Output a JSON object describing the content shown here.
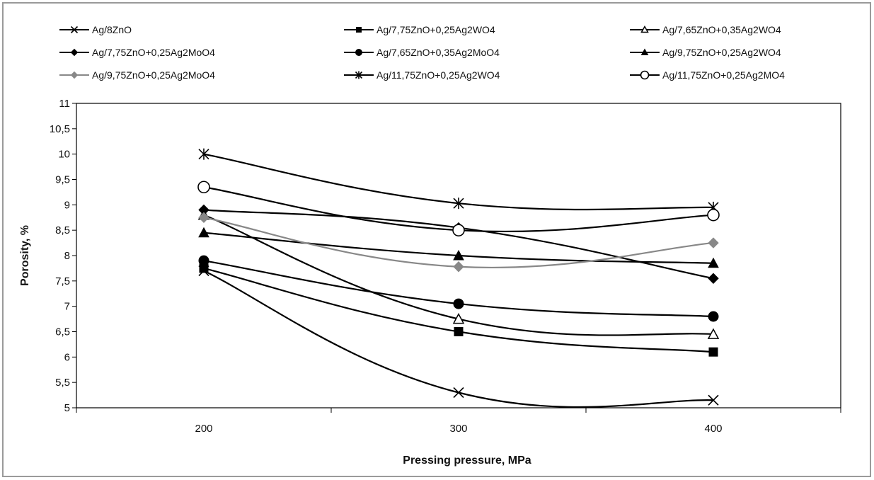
{
  "chart_data": {
    "type": "line",
    "title": "",
    "xlabel": "Pressing pressure,  MPa",
    "ylabel": "Porosity, %",
    "x": [
      200,
      300,
      400
    ],
    "x_tick_labels": [
      "200",
      "300",
      "400"
    ],
    "xlim": [
      150,
      450
    ],
    "ylim": [
      5,
      11
    ],
    "y_ticks": [
      5,
      5.5,
      6,
      6.5,
      7,
      7.5,
      8,
      8.5,
      9,
      9.5,
      10,
      10.5,
      11
    ],
    "y_tick_labels": [
      "5",
      "5,5",
      "6",
      "6,5",
      "7",
      "7,5",
      "8",
      "8,5",
      "9",
      "9,5",
      "10",
      "10,5",
      "11"
    ],
    "grid": false,
    "legend_position": "top",
    "series": [
      {
        "name": "Ag/8ZnO",
        "values": [
          7.7,
          5.3,
          5.15
        ],
        "marker": "x",
        "color": "#000000"
      },
      {
        "name": "Ag/7,75ZnO+0,25Ag2WO4",
        "values": [
          7.75,
          6.5,
          6.1
        ],
        "marker": "square",
        "color": "#000000"
      },
      {
        "name": "Ag/7,65ZnO+0,35Ag2WO4",
        "values": [
          8.8,
          6.75,
          6.45
        ],
        "marker": "triangle-open",
        "color": "#000000"
      },
      {
        "name": "Ag/7,75ZnO+0,25Ag2MoO4",
        "values": [
          8.9,
          8.55,
          7.55
        ],
        "marker": "diamond",
        "color": "#000000"
      },
      {
        "name": "Ag/7,65ZnO+0,35Ag2MoO4",
        "values": [
          7.9,
          7.05,
          6.8
        ],
        "marker": "circle",
        "color": "#000000"
      },
      {
        "name": "Ag/9,75ZnO+0,25Ag2WO4",
        "values": [
          8.45,
          8.0,
          7.85
        ],
        "marker": "triangle",
        "color": "#000000"
      },
      {
        "name": "Ag/9,75ZnO+0,25Ag2MoO4",
        "values": [
          8.75,
          7.78,
          8.25
        ],
        "marker": "diamond",
        "color": "#888888"
      },
      {
        "name": "Ag/11,75ZnO+0,25Ag2WO4",
        "values": [
          10.0,
          9.03,
          8.95
        ],
        "marker": "asterisk",
        "color": "#000000"
      },
      {
        "name": "Ag/11,75ZnO+0,25Ag2MO4",
        "values": [
          9.35,
          8.5,
          8.8
        ],
        "marker": "circle-open",
        "color": "#000000"
      }
    ]
  }
}
